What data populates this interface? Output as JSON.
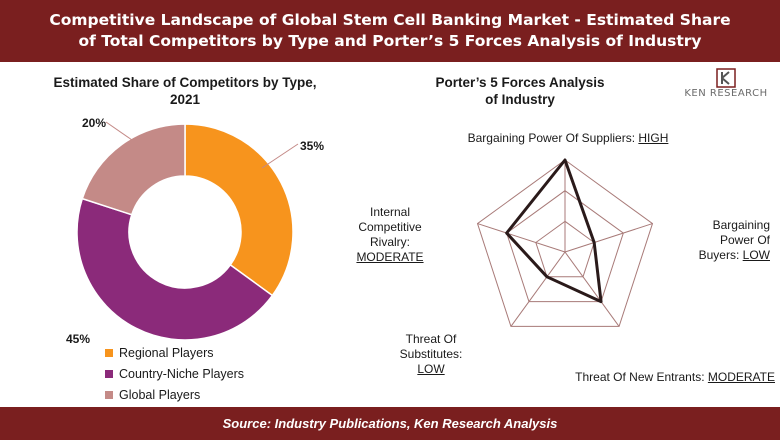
{
  "header": {
    "title": "Competitive Landscape of Global Stem Cell Banking Market - Estimated Share of Total Competitors by Type and Porter’s 5 Forces Analysis of Industry"
  },
  "left_panel": {
    "title": "Estimated Share of Competitors by Type, 2021"
  },
  "right_panel": {
    "title": "Porter’s 5 Forces Analysis of Industry"
  },
  "logo": {
    "text": "KEN RESEARCH",
    "icon": "ken-research-logo-icon"
  },
  "footer": {
    "source": "Source: Industry Publications, Ken Research Analysis"
  },
  "colors": {
    "brand": "#7a1f1f",
    "regional": "#f7941d",
    "country_niche": "#8b2a7a",
    "global": "#c48a87",
    "radar_line": "#2a1a1a",
    "radar_grid": "#a87a78"
  },
  "chart_data": [
    {
      "type": "pie",
      "variant": "donut",
      "title": "Estimated Share of Competitors by Type, 2021",
      "categories": [
        "Regional Players",
        "Country-Niche Players",
        "Global Players"
      ],
      "values": [
        35,
        45,
        20
      ],
      "value_labels": [
        "35%",
        "45%",
        "20%"
      ],
      "colors": [
        "#f7941d",
        "#8b2a7a",
        "#c48a87"
      ],
      "legend_position": "bottom"
    },
    {
      "type": "radar",
      "title": "Porter’s 5 Forces Analysis of Industry",
      "levels": [
        "LOW",
        "MODERATE",
        "HIGH"
      ],
      "axes": [
        {
          "name": "Bargaining Power Of Suppliers:",
          "level": "HIGH",
          "value": 3
        },
        {
          "name": "Bargaining Power Of Buyers:",
          "level": "LOW",
          "value": 1
        },
        {
          "name": "Threat Of New Entrants:",
          "level": "MODERATE",
          "value": 2
        },
        {
          "name": "Threat Of Substitutes:",
          "level": "LOW",
          "value": 1
        },
        {
          "name": "Internal Competitive Rivalry:",
          "level": "MODERATE",
          "value": 2
        }
      ],
      "scale_max": 3
    }
  ]
}
